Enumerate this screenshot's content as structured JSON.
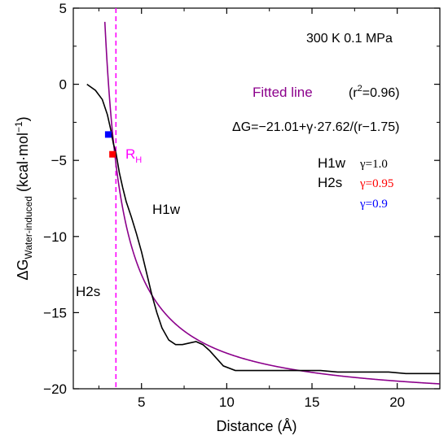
{
  "chart_data": {
    "type": "line",
    "xlabel": "Distance (Å)",
    "ylabel_main": "ΔG",
    "ylabel_sub": "Water-induced",
    "ylabel_unit": " (kcal·mol",
    "ylabel_exp": "−1",
    "ylabel_close": ")",
    "xlim": [
      1,
      22.5
    ],
    "ylim": [
      -20,
      5
    ],
    "xticks": [
      5,
      10,
      15,
      20
    ],
    "xtick_labels": [
      "5",
      "10",
      "15",
      "20"
    ],
    "yticks": [
      5,
      0,
      -5,
      -10,
      -15,
      -20
    ],
    "ytick_labels": [
      "5",
      "0",
      "−5",
      "−10",
      "−15",
      "−20"
    ],
    "series": [
      {
        "name": "H1w",
        "color": "#000000",
        "x": [
          1.8,
          2.3,
          2.7,
          3.0,
          3.2,
          3.35,
          3.5,
          3.7,
          3.9,
          4.1,
          4.4,
          4.7,
          5.0,
          5.3,
          5.6,
          5.9,
          6.2,
          6.6,
          7.0,
          7.4,
          7.8,
          8.2,
          8.6,
          9.0,
          9.4,
          9.8,
          10.5,
          11.5,
          12.5,
          13.5,
          14.5,
          15.5,
          16.5,
          17.5,
          18.5,
          19.5,
          20.5,
          21.5,
          22.5
        ],
        "y": [
          0.0,
          -0.4,
          -1.0,
          -2.0,
          -3.0,
          -3.9,
          -4.5,
          -5.8,
          -6.8,
          -7.7,
          -8.7,
          -9.8,
          -11.0,
          -12.4,
          -13.8,
          -15.0,
          -16.0,
          -16.8,
          -17.1,
          -17.1,
          -17.0,
          -16.9,
          -17.1,
          -17.5,
          -18.0,
          -18.5,
          -18.8,
          -18.8,
          -18.8,
          -18.8,
          -18.8,
          -18.8,
          -18.9,
          -18.9,
          -18.9,
          -18.9,
          -19.0,
          -19.0,
          -19.0
        ]
      },
      {
        "name": "Fitted line",
        "color": "#8b008b",
        "equation": {
          "a": -21.01,
          "b": 27.62,
          "c": 1.75
        },
        "x_range": [
          2.85,
          22.5
        ]
      }
    ],
    "markers": [
      {
        "name": "γ=0.9",
        "x": 3.05,
        "y": -3.3,
        "color": "#0000ff"
      },
      {
        "name": "γ=0.95",
        "x": 3.3,
        "y": -4.6,
        "color": "#ff0000"
      }
    ],
    "rh_x": 3.5,
    "rh_color": "#ff00ff",
    "annotations": {
      "condition": "300 K 0.1 MPa",
      "fitted_label": "Fitted line",
      "r2_open": "(r",
      "r2_exp": "2",
      "r2_close": "=0.96)",
      "equation": "ΔG=−21.01+γ·27.62/(r−1.75)",
      "rh_main": "R",
      "rh_sub": "H",
      "curve_label": "H1w",
      "side_label": "H2s",
      "legend": [
        {
          "name": "H1w",
          "gamma": "γ=1.0",
          "color": "#000000"
        },
        {
          "name": "H2s",
          "gamma": "γ=0.95",
          "color": "#ff0000"
        },
        {
          "name": "",
          "gamma": "γ=0.9",
          "color": "#0000ff"
        }
      ]
    }
  }
}
